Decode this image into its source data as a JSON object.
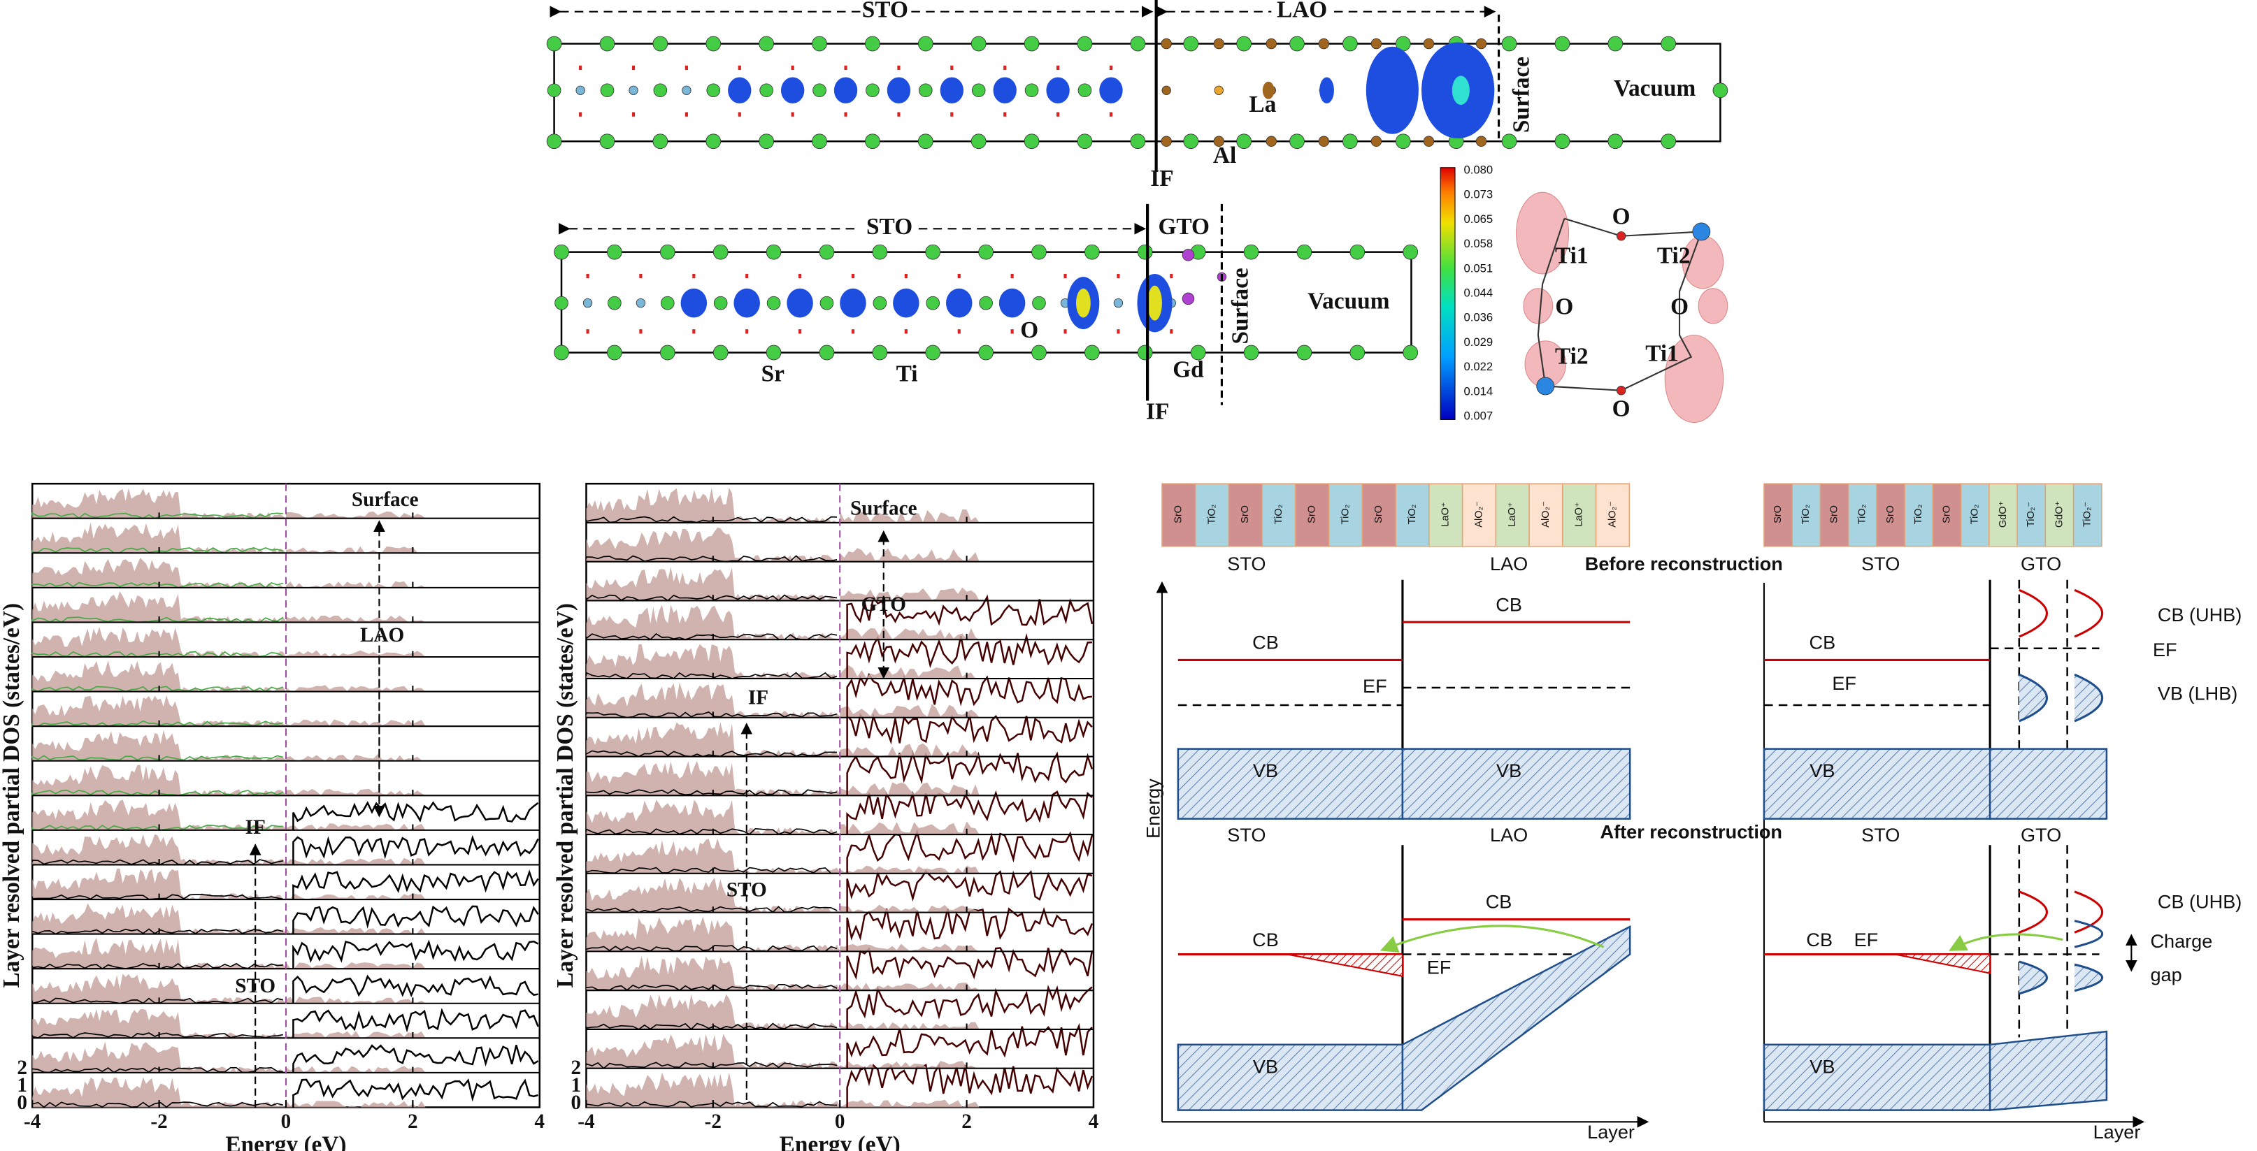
{
  "structure_lao": {
    "sto": "STO",
    "lao": "LAO",
    "surface": "Surface",
    "vacuum": "Vacuum",
    "la": "La",
    "al": "Al",
    "interface": "IF"
  },
  "structure_gto": {
    "sto": "STO",
    "gto": "GTO",
    "surface": "Surface",
    "vacuum": "Vacuum",
    "sr": "Sr",
    "ti": "Ti",
    "o": "O",
    "gd": "Gd",
    "interface": "IF"
  },
  "colorbar": {
    "ticks": [
      "0.080",
      "0.073",
      "0.065",
      "0.058",
      "0.051",
      "0.044",
      "0.036",
      "0.029",
      "0.022",
      "0.014",
      "0.007"
    ]
  },
  "orbital_diagram": {
    "labels": [
      "O",
      "Ti1",
      "Ti2",
      "O",
      "O",
      "Ti2",
      "Ti1",
      "O"
    ]
  },
  "dos_lao": {
    "y_label": "Layer resolved partial DOS (states/eV)",
    "x_label": "Energy (eV)",
    "x_ticks": [
      "-4",
      "-2",
      "0",
      "2",
      "4"
    ],
    "y_ticks": [
      "0",
      "1",
      "2"
    ],
    "annotations": {
      "surface": "Surface",
      "lao": "LAO",
      "interface": "IF",
      "sto": "STO"
    }
  },
  "dos_gto": {
    "y_label": "Layer resolved partial DOS (states/eV)",
    "x_label": "Energy (eV)",
    "x_ticks": [
      "-4",
      "-2",
      "0",
      "2",
      "4"
    ],
    "y_ticks": [
      "0",
      "1",
      "2"
    ],
    "annotations": {
      "surface": "Surface",
      "gto": "GTO",
      "interface": "IF",
      "sto": "STO"
    }
  },
  "band_diagrams": {
    "lao_stack": [
      "SrO",
      "TiO₂",
      "SrO",
      "TiO₂",
      "SrO",
      "TiO₂",
      "SrO",
      "TiO₂",
      "LaO⁺",
      "AlO₂⁻",
      "LaO⁺",
      "AlO₂⁻",
      "LaO⁺",
      "AlO₂⁻"
    ],
    "gto_stack": [
      "SrO",
      "TiO₂",
      "SrO",
      "TiO₂",
      "SrO",
      "TiO₂",
      "SrO",
      "TiO₂",
      "GdO⁺",
      "TiO₂⁻",
      "GdO⁺",
      "TiO₂⁻"
    ],
    "before": "Before reconstruction",
    "after": "After reconstruction",
    "energy_axis": "Energy",
    "layer_axis": "Layer",
    "sto": "STO",
    "lao": "LAO",
    "gto": "GTO",
    "cb": "CB",
    "vb": "VB",
    "ef": "EF",
    "cb_uhb": "CB (UHB)",
    "vb_lhb": "VB (LHB)",
    "charge": "Charge",
    "gap": "gap"
  }
}
